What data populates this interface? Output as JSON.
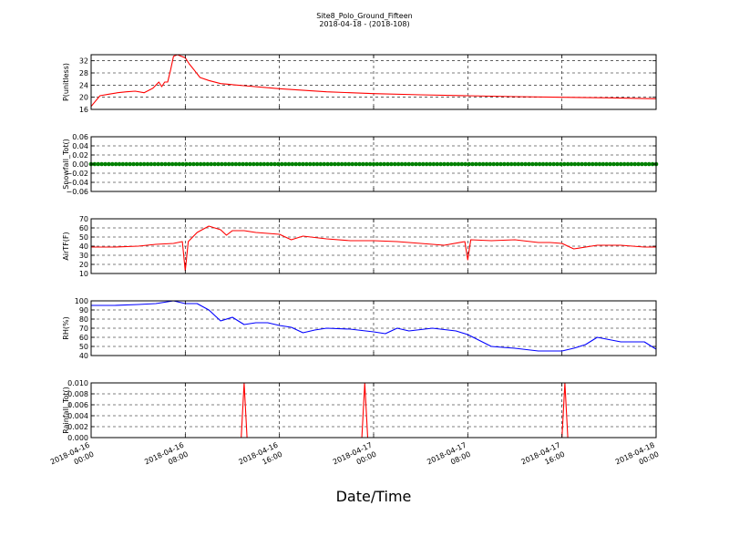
{
  "figure": {
    "title_line1": "Site8_Polo_Ground_Fifteen",
    "title_line2": "2018-04-18 - (2018-108)",
    "xlabel": "Date/Time",
    "x_tick_labels": [
      [
        "2018-04-16",
        "00:00"
      ],
      [
        "2018-04-16",
        "08:00"
      ],
      [
        "2018-04-16",
        "16:00"
      ],
      [
        "2018-04-17",
        "00:00"
      ],
      [
        "2018-04-17",
        "08:00"
      ],
      [
        "2018-04-17",
        "16:00"
      ],
      [
        "2018-04-18",
        "00:00"
      ]
    ]
  },
  "chart_data": [
    {
      "type": "line",
      "ylabel": "P(unitless)",
      "ylim": [
        16,
        34
      ],
      "yticks": [
        16,
        20,
        24,
        28,
        32
      ],
      "ytick_labels": [
        "16",
        "20",
        "24",
        "28",
        "32"
      ],
      "grid": true,
      "series": [
        {
          "color": "#ff0000",
          "x": [
            "2018-04-16 00:00",
            "2018-04-16 00:45",
            "2018-04-16 01:30",
            "2018-04-16 02:15",
            "2018-04-16 03:00",
            "2018-04-16 03:45",
            "2018-04-16 04:30",
            "2018-04-16 05:15",
            "2018-04-16 05:45",
            "2018-04-16 06:00",
            "2018-04-16 06:15",
            "2018-04-16 06:30",
            "2018-04-16 06:45",
            "2018-04-16 07:00",
            "2018-04-16 07:20",
            "2018-04-16 07:40",
            "2018-04-16 08:00",
            "2018-04-16 08:20",
            "2018-04-16 08:45",
            "2018-04-16 09:15",
            "2018-04-16 10:00",
            "2018-04-16 11:00",
            "2018-04-16 13:00",
            "2018-04-16 16:00",
            "2018-04-16 20:00",
            "2018-04-17 00:00",
            "2018-04-17 04:00",
            "2018-04-17 08:00",
            "2018-04-17 12:00",
            "2018-04-17 16:00",
            "2018-04-17 20:00",
            "2018-04-18 00:00"
          ],
          "y": [
            17,
            20.5,
            21,
            21.5,
            21.8,
            22,
            21.5,
            23,
            25,
            23.5,
            25,
            25,
            29,
            33.5,
            34,
            33.5,
            33,
            31,
            29,
            26.5,
            25.5,
            24.5,
            23.8,
            22.8,
            21.8,
            21.2,
            20.8,
            20.5,
            20.2,
            20,
            19.8,
            19.5
          ]
        }
      ]
    },
    {
      "type": "scatter",
      "ylabel": "Snowfall_Tot()",
      "ylim": [
        -0.06,
        0.06
      ],
      "yticks": [
        -0.06,
        -0.04,
        -0.02,
        0.0,
        0.02,
        0.04,
        0.06
      ],
      "ytick_labels": [
        "−0.06",
        "−0.04",
        "−0.02",
        "0.00",
        "0.02",
        "0.04",
        "0.06"
      ],
      "grid": true,
      "series": [
        {
          "color": "#008000",
          "x_range": [
            "2018-04-16 00:00",
            "2018-04-18 00:00"
          ],
          "value": 0
        }
      ]
    },
    {
      "type": "line",
      "ylabel": "AirTF(F)",
      "ylim": [
        10,
        70
      ],
      "yticks": [
        10,
        20,
        30,
        40,
        50,
        60,
        70
      ],
      "ytick_labels": [
        "10",
        "20",
        "30",
        "40",
        "50",
        "60",
        "70"
      ],
      "grid": true,
      "series": [
        {
          "color": "#ff0000",
          "x": [
            "2018-04-16 00:00",
            "2018-04-16 02:00",
            "2018-04-16 04:00",
            "2018-04-16 05:30",
            "2018-04-16 07:00",
            "2018-04-16 07:45",
            "2018-04-16 08:00",
            "2018-04-16 08:15",
            "2018-04-16 09:00",
            "2018-04-16 10:00",
            "2018-04-16 11:00",
            "2018-04-16 11:30",
            "2018-04-16 12:00",
            "2018-04-16 13:00",
            "2018-04-16 14:00",
            "2018-04-16 15:00",
            "2018-04-16 16:00",
            "2018-04-16 17:00",
            "2018-04-16 18:00",
            "2018-04-16 20:00",
            "2018-04-16 22:00",
            "2018-04-17 00:00",
            "2018-04-17 02:00",
            "2018-04-17 04:00",
            "2018-04-17 06:00",
            "2018-04-17 07:45",
            "2018-04-17 08:00",
            "2018-04-17 08:15",
            "2018-04-17 10:00",
            "2018-04-17 12:00",
            "2018-04-17 14:00",
            "2018-04-17 15:00",
            "2018-04-17 16:00",
            "2018-04-17 17:00",
            "2018-04-17 19:00",
            "2018-04-17 21:00",
            "2018-04-17 23:00",
            "2018-04-18 00:00"
          ],
          "y": [
            39,
            39,
            40,
            42,
            43,
            45,
            13,
            45,
            55,
            62,
            58,
            52,
            57,
            57,
            55,
            54,
            53,
            47,
            51,
            48,
            46,
            46,
            45,
            43,
            41,
            45,
            25,
            47,
            46,
            47,
            44,
            44,
            43,
            37,
            41,
            41,
            39,
            39
          ]
        }
      ]
    },
    {
      "type": "line",
      "ylabel": "RH(%)",
      "ylim": [
        40,
        100
      ],
      "yticks": [
        40,
        50,
        60,
        70,
        80,
        90,
        100
      ],
      "ytick_labels": [
        "40",
        "50",
        "60",
        "70",
        "80",
        "90",
        "100"
      ],
      "grid": true,
      "series": [
        {
          "color": "#0000ff",
          "x": [
            "2018-04-16 00:00",
            "2018-04-16 02:00",
            "2018-04-16 04:00",
            "2018-04-16 05:30",
            "2018-04-16 07:00",
            "2018-04-16 08:00",
            "2018-04-16 09:00",
            "2018-04-16 10:00",
            "2018-04-16 11:00",
            "2018-04-16 12:00",
            "2018-04-16 13:00",
            "2018-04-16 14:00",
            "2018-04-16 15:00",
            "2018-04-16 16:00",
            "2018-04-16 17:00",
            "2018-04-16 18:00",
            "2018-04-16 19:00",
            "2018-04-16 20:00",
            "2018-04-16 22:00",
            "2018-04-17 00:00",
            "2018-04-17 01:00",
            "2018-04-17 02:00",
            "2018-04-17 03:00",
            "2018-04-17 05:00",
            "2018-04-17 07:00",
            "2018-04-17 08:00",
            "2018-04-17 10:00",
            "2018-04-17 12:00",
            "2018-04-17 14:00",
            "2018-04-17 16:00",
            "2018-04-17 17:00",
            "2018-04-17 18:00",
            "2018-04-17 19:00",
            "2018-04-17 21:00",
            "2018-04-17 23:00",
            "2018-04-18 00:00"
          ],
          "y": [
            95,
            95,
            96,
            97,
            100,
            97,
            97,
            90,
            78,
            82,
            74,
            76,
            76,
            73,
            71,
            65,
            68,
            70,
            69,
            66,
            64,
            70,
            67,
            70,
            67,
            63,
            50,
            48,
            45,
            45,
            48,
            52,
            60,
            55,
            55,
            47
          ]
        }
      ]
    },
    {
      "type": "line",
      "ylabel": "Rainfall_Tot()",
      "ylim": [
        0.0,
        0.01
      ],
      "yticks": [
        0.0,
        0.002,
        0.004,
        0.006,
        0.008,
        0.01
      ],
      "ytick_labels": [
        "0.000",
        "0.002",
        "0.004",
        "0.006",
        "0.008",
        "0.010"
      ],
      "grid": true,
      "series": [
        {
          "color": "#ff0000",
          "x": [
            "2018-04-16 00:00",
            "2018-04-16 12:45",
            "2018-04-16 13:00",
            "2018-04-16 13:15",
            "2018-04-16 23:00",
            "2018-04-16 23:15",
            "2018-04-16 23:30",
            "2018-04-17 16:00",
            "2018-04-17 16:15",
            "2018-04-17 16:30",
            "2018-04-18 00:00"
          ],
          "y": [
            0,
            0,
            0.01,
            0,
            0,
            0.01,
            0,
            0,
            0.01,
            0,
            0
          ]
        }
      ]
    }
  ]
}
